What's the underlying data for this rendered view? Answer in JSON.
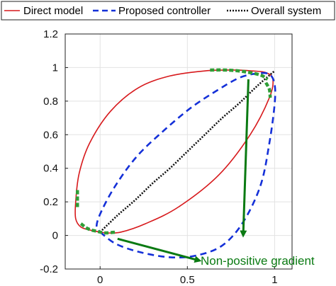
{
  "chart_data": {
    "type": "line",
    "title": "",
    "xlabel": "",
    "ylabel": "",
    "xlim": [
      -0.2,
      1.1
    ],
    "ylim": [
      -0.2,
      1.2
    ],
    "xticks": [
      0,
      0.5,
      1
    ],
    "xtick_labels": [
      "0",
      "0.5",
      "1"
    ],
    "yticks": [
      -0.2,
      0,
      0.2,
      0.4,
      0.6,
      0.8,
      1,
      1.2
    ],
    "ytick_labels": [
      "-0.2",
      "0",
      "0.2",
      "0.4",
      "0.6",
      "0.8",
      "1",
      "1.2"
    ],
    "grid": true,
    "legend_position": "top",
    "series": [
      {
        "name": "Direct model",
        "color": "#d7191c",
        "style": "solid",
        "x": [
          0.0,
          0.04,
          0.12,
          0.26,
          0.45,
          0.68,
          0.86,
          0.97,
          0.99,
          0.95,
          0.87,
          0.76,
          0.6,
          0.4,
          0.22,
          0.06,
          -0.06,
          -0.12,
          -0.14,
          -0.14,
          -0.11,
          -0.05,
          0.0
        ],
        "y": [
          0.02,
          0.015,
          0.02,
          0.07,
          0.17,
          0.36,
          0.6,
          0.82,
          0.93,
          0.97,
          0.98,
          0.985,
          0.98,
          0.95,
          0.88,
          0.74,
          0.55,
          0.37,
          0.2,
          0.1,
          0.05,
          0.03,
          0.02
        ]
      },
      {
        "name": "Proposed controller",
        "color": "#1430d8",
        "style": "dashed",
        "x": [
          0.0,
          0.09,
          0.23,
          0.4,
          0.55,
          0.7,
          0.82,
          0.92,
          0.97,
          1.0,
          1.0,
          0.97,
          0.9,
          0.8,
          0.68,
          0.52,
          0.36,
          0.21,
          0.09,
          0.01,
          -0.02,
          0.0
        ],
        "y": [
          0.02,
          -0.05,
          -0.1,
          -0.13,
          -0.12,
          -0.06,
          0.08,
          0.3,
          0.55,
          0.78,
          0.9,
          0.96,
          0.965,
          0.94,
          0.87,
          0.76,
          0.62,
          0.47,
          0.3,
          0.15,
          0.06,
          0.02
        ]
      },
      {
        "name": "Overall system",
        "color": "#111111",
        "style": "dotted",
        "x": [
          0.0,
          0.1,
          0.2,
          0.3,
          0.4,
          0.5,
          0.6,
          0.7,
          0.8,
          0.9,
          1.0
        ],
        "y": [
          0.02,
          0.12,
          0.21,
          0.31,
          0.4,
          0.5,
          0.6,
          0.7,
          0.79,
          0.89,
          0.98
        ]
      }
    ],
    "highlight_segments": {
      "color": "#2e9e36",
      "segments": [
        {
          "x": [
            -0.13,
            -0.13
          ],
          "y": [
            0.27,
            0.16
          ]
        },
        {
          "x": [
            -0.11,
            -0.07,
            -0.02,
            0.03,
            0.09
          ],
          "y": [
            0.07,
            0.04,
            0.025,
            0.015,
            0.02
          ]
        },
        {
          "x": [
            0.63,
            0.73,
            0.83,
            0.92,
            0.96
          ],
          "y": [
            0.985,
            0.985,
            0.975,
            0.955,
            0.93
          ]
        },
        {
          "x": [
            0.95,
            0.97,
            0.975
          ],
          "y": [
            0.91,
            0.87,
            0.82
          ]
        }
      ]
    },
    "annotation": {
      "text": "Non-positive gradient",
      "color": "#0a7a12",
      "arrows": [
        {
          "from": [
            0.85,
            0.93
          ],
          "to": [
            0.82,
            0.0
          ]
        },
        {
          "from": [
            0.1,
            -0.02
          ],
          "to": [
            0.57,
            -0.15
          ]
        }
      ]
    }
  }
}
